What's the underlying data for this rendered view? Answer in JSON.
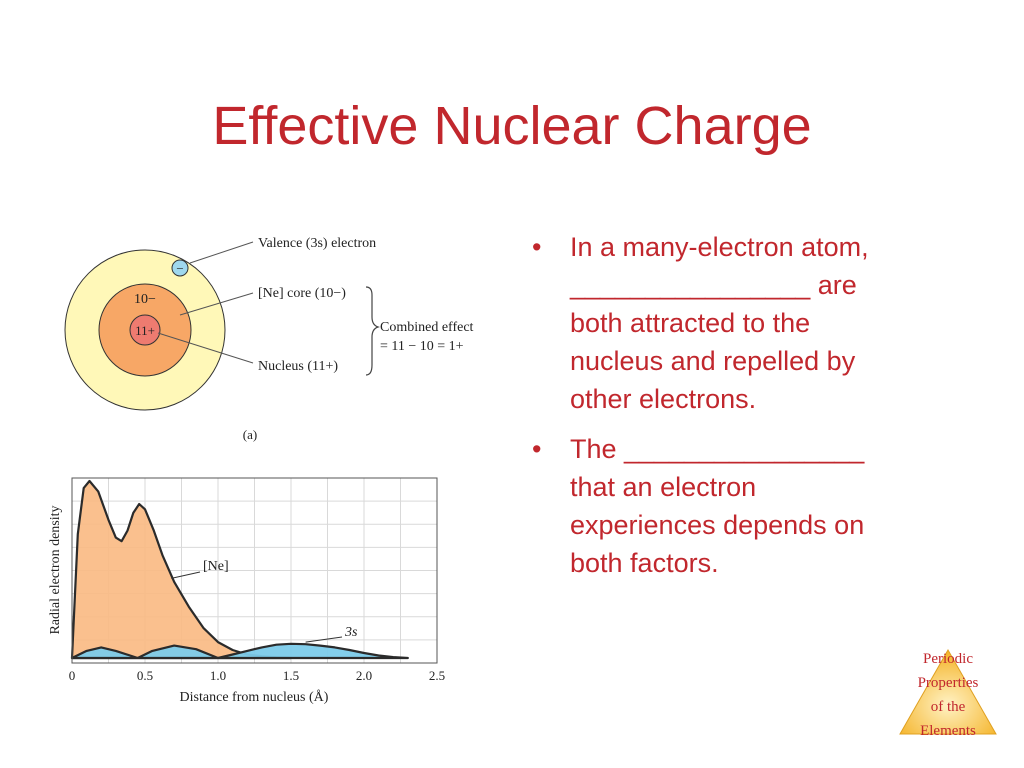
{
  "slide": {
    "title": "Effective Nuclear Charge"
  },
  "bullets": [
    {
      "lines": [
        "In a many-electron atom,",
        "________________ are",
        "both attracted to the",
        "nucleus and repelled by",
        "other electrons."
      ]
    },
    {
      "lines": [
        "The ________________",
        "that an electron",
        "experiences depends on",
        "both factors."
      ]
    }
  ],
  "diagram_a": {
    "core_charge": "10−",
    "nucleus_charge": "11+",
    "label_valence": "Valence (3s) electron",
    "label_core": "[Ne] core (10−)",
    "label_nucleus": "Nucleus (11+)",
    "label_combined_1": "Combined effect",
    "label_combined_2": "= 11 − 10 = 1+",
    "electron_symbol": "−",
    "caption": "(a)",
    "colors": {
      "outer": "#fff8b8",
      "core": "#f7a766",
      "nucleus": "#ee7b70",
      "electron": "#9fd8ee"
    }
  },
  "chart_data": {
    "type": "area",
    "xlabel": "Distance from nucleus (Å)",
    "ylabel": "Radial electron density",
    "xlim": [
      0,
      2.5
    ],
    "x_ticks": [
      "0",
      "0.5",
      "1.0",
      "1.5",
      "2.0",
      "2.5"
    ],
    "grid": true,
    "series": [
      {
        "name": "[Ne]",
        "color": "#f9b982",
        "x": [
          0,
          0.04,
          0.08,
          0.12,
          0.18,
          0.25,
          0.3,
          0.34,
          0.38,
          0.42,
          0.46,
          0.5,
          0.56,
          0.62,
          0.7,
          0.8,
          0.9,
          1.0,
          1.1,
          1.2,
          1.3,
          1.4,
          1.5
        ],
        "y": [
          0,
          0.7,
          0.96,
          1.0,
          0.94,
          0.78,
          0.68,
          0.66,
          0.72,
          0.82,
          0.87,
          0.84,
          0.72,
          0.58,
          0.43,
          0.29,
          0.17,
          0.09,
          0.045,
          0.02,
          0.01,
          0.004,
          0
        ]
      },
      {
        "name": "3s",
        "color": "#7ccbea",
        "x": [
          0,
          0.1,
          0.2,
          0.3,
          0.45,
          0.55,
          0.7,
          0.85,
          1.0,
          1.1,
          1.2,
          1.3,
          1.4,
          1.5,
          1.6,
          1.7,
          1.8,
          1.9,
          2.0,
          2.1,
          2.2,
          2.3
        ],
        "y": [
          0,
          0.04,
          0.06,
          0.04,
          0,
          0.04,
          0.07,
          0.05,
          0,
          0.02,
          0.04,
          0.06,
          0.075,
          0.08,
          0.078,
          0.07,
          0.06,
          0.045,
          0.028,
          0.014,
          0.005,
          0
        ]
      }
    ]
  },
  "badge": {
    "lines": [
      "Periodic",
      "Properties",
      "of the",
      "Elements"
    ],
    "color": "#f5b731"
  }
}
